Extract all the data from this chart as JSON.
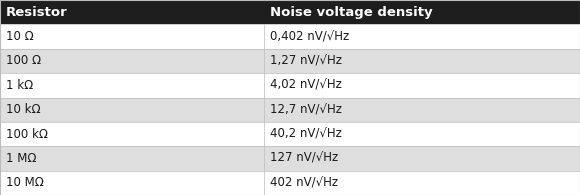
{
  "col_headers": [
    "Resistor",
    "Noise voltage density"
  ],
  "rows": [
    [
      "10 Ω",
      "0,402 nV/√Hz"
    ],
    [
      "100 Ω",
      "1,27 nV/√Hz"
    ],
    [
      "1 kΩ",
      "4,02 nV/√Hz"
    ],
    [
      "10 kΩ",
      "12,7 nV/√Hz"
    ],
    [
      "100 kΩ",
      "40,2 nV/√Hz"
    ],
    [
      "1 MΩ",
      "127 nV/√Hz"
    ],
    [
      "10 MΩ",
      "402 nV/√Hz"
    ]
  ],
  "header_bg": "#1e1e1e",
  "header_fg": "#ffffff",
  "row_bg_even": "#ffffff",
  "row_bg_odd": "#dedede",
  "border_color": "#bbbbbb",
  "font_size": 8.5,
  "header_font_size": 9.5,
  "col_split": 0.455,
  "fig_bg": "#ffffff",
  "fig_w": 5.8,
  "fig_h": 1.95,
  "dpi": 100
}
